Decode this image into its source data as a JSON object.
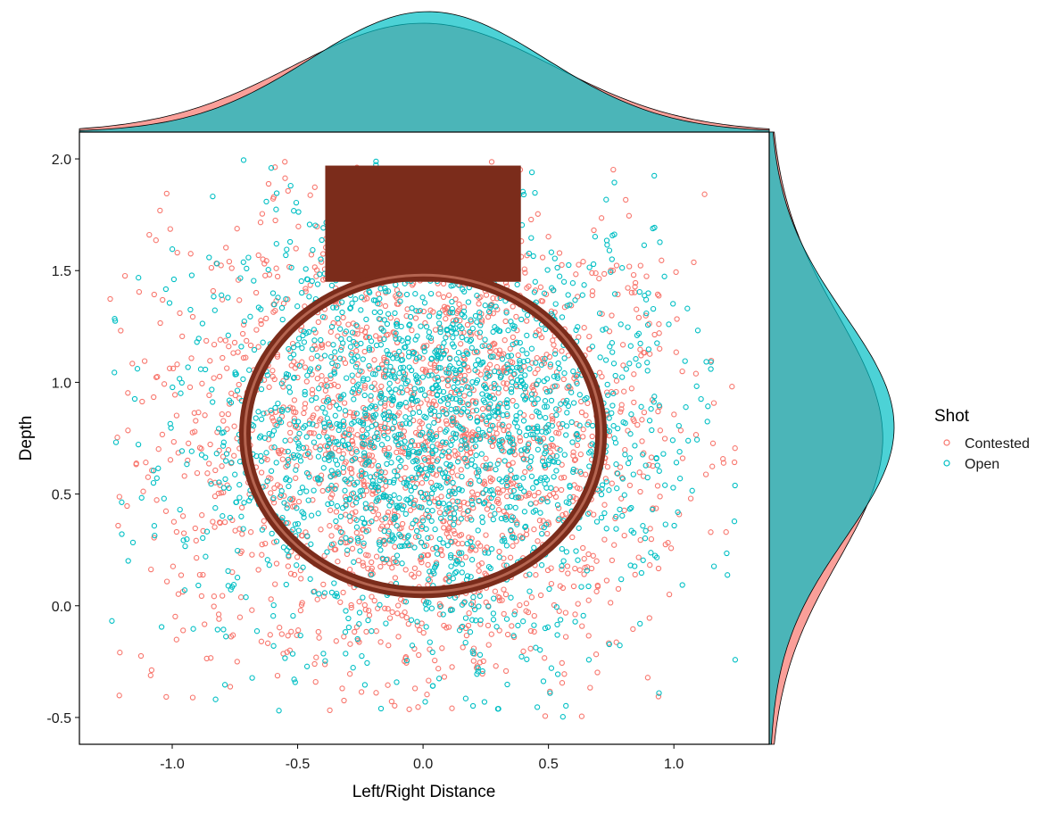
{
  "chart_data": {
    "type": "scatter",
    "title": "",
    "xlabel": "Left/Right Distance",
    "ylabel": "Depth",
    "xlim": [
      -1.37,
      1.38
    ],
    "ylim": [
      -0.62,
      2.12
    ],
    "x_ticks": [
      -1.0,
      -0.5,
      0.0,
      0.5,
      1.0
    ],
    "x_tick_labels": [
      "-1.0",
      "-0.5",
      "0.0",
      "0.5",
      "1.0"
    ],
    "y_ticks": [
      -0.5,
      0.0,
      0.5,
      1.0,
      1.5,
      2.0
    ],
    "y_tick_labels": [
      "-0.5",
      "0.0",
      "0.5",
      "1.0",
      "1.5",
      "2.0"
    ],
    "grid": false,
    "legend": {
      "title": "Shot",
      "position": "right",
      "entries": [
        {
          "label": "Contested",
          "color": "#F8766D"
        },
        {
          "label": "Open",
          "color": "#00BFC4"
        }
      ]
    },
    "overlay": {
      "rim_circle": {
        "center": [
          0.0,
          0.77
        ],
        "radius": 0.71,
        "color": "#7B2C1B",
        "highlight": "#C0705A"
      },
      "backboard": {
        "x_range": [
          -0.39,
          0.39
        ],
        "y_range": [
          1.45,
          1.97
        ],
        "color": "#7B2C1B"
      }
    },
    "series": [
      {
        "name": "Contested",
        "color": "#F8766D",
        "n_points": 2000,
        "x_mean": 0.0,
        "x_sd": 0.52,
        "x_range": [
          -1.25,
          1.25
        ],
        "y_mean": 0.75,
        "y_sd": 0.55,
        "y_range": [
          -0.5,
          2.0
        ],
        "marginal_x_peak": 0.0,
        "marginal_y_peak": 0.75
      },
      {
        "name": "Open",
        "color": "#00BFC4",
        "n_points": 2000,
        "x_mean": 0.02,
        "x_sd": 0.47,
        "x_range": [
          -1.25,
          1.25
        ],
        "y_mean": 0.8,
        "y_sd": 0.5,
        "y_range": [
          -0.5,
          2.0
        ],
        "marginal_x_peak": 0.02,
        "marginal_y_peak": 0.8
      }
    ],
    "marginal_plots": {
      "top": "density",
      "right": "density"
    }
  }
}
